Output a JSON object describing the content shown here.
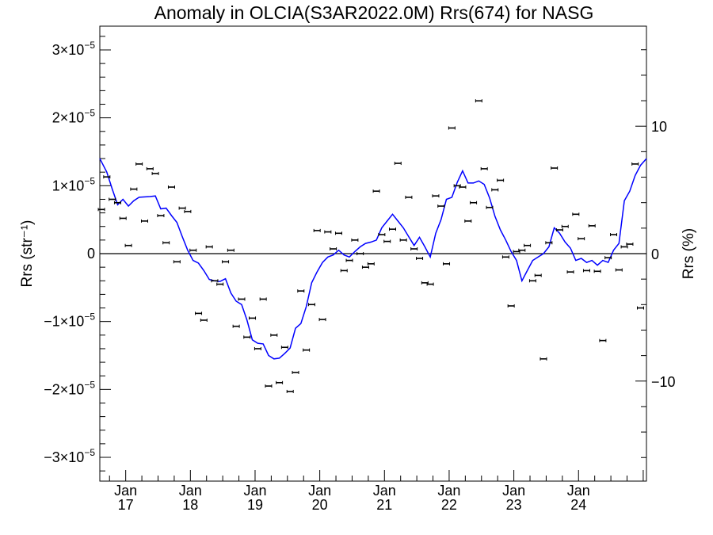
{
  "chart_data": {
    "type": "scatter",
    "title": "Anomaly in OLCIA(S3AR2022.0M) Rrs(674) for NASG",
    "ylabel": "Rrs (str⁻¹)",
    "ylabel_right": "Rrs (%)",
    "ylim": [
      -3.35e-05,
      3.35e-05
    ],
    "ylim_right": [
      -17.85,
      17.85
    ],
    "xlim": [
      2016.6,
      2025.05
    ],
    "x_ticks": [
      {
        "x": 2017.0,
        "month": "Jan",
        "year": "17"
      },
      {
        "x": 2018.0,
        "month": "Jan",
        "year": "18"
      },
      {
        "x": 2019.0,
        "month": "Jan",
        "year": "19"
      },
      {
        "x": 2020.0,
        "month": "Jan",
        "year": "20"
      },
      {
        "x": 2021.0,
        "month": "Jan",
        "year": "21"
      },
      {
        "x": 2022.0,
        "month": "Jan",
        "year": "22"
      },
      {
        "x": 2023.0,
        "month": "Jan",
        "year": "23"
      },
      {
        "x": 2024.0,
        "month": "Jan",
        "year": "24"
      }
    ],
    "y_ticks_left": [
      {
        "v": 3e-05,
        "mant": "3",
        "exp": "−5"
      },
      {
        "v": 2e-05,
        "mant": "2",
        "exp": "−5"
      },
      {
        "v": 1e-05,
        "mant": "1",
        "exp": "−5"
      },
      {
        "v": 0,
        "plain": "0"
      },
      {
        "v": -1e-05,
        "mant": "−1",
        "exp": "−5"
      },
      {
        "v": -2e-05,
        "mant": "−2",
        "exp": "−5"
      },
      {
        "v": -3e-05,
        "mant": "−3",
        "exp": "−5"
      }
    ],
    "y_ticks_right": [
      {
        "v": 10,
        "label": "10"
      },
      {
        "v": 0,
        "label": "0"
      },
      {
        "v": -10,
        "label": "−10"
      }
    ],
    "zero_line": true,
    "grid": false,
    "series": [
      {
        "kind": "points_with_error_bars",
        "color": "#000000",
        "points": [
          [
            2016.625,
            6.5e-06
          ],
          [
            2016.708,
            1.13e-05
          ],
          [
            2016.792,
            8e-06
          ],
          [
            2016.875,
            7.5e-06
          ],
          [
            2016.958,
            5.2e-06
          ],
          [
            2017.042,
            1.2e-06
          ],
          [
            2017.125,
            9.5e-06
          ],
          [
            2017.208,
            1.32e-05
          ],
          [
            2017.292,
            4.8e-06
          ],
          [
            2017.375,
            1.25e-05
          ],
          [
            2017.458,
            1.18e-05
          ],
          [
            2017.542,
            5.6e-06
          ],
          [
            2017.625,
            1.6e-06
          ],
          [
            2017.708,
            9.8e-06
          ],
          [
            2017.792,
            -1.2e-06
          ],
          [
            2017.875,
            6.7e-06
          ],
          [
            2017.958,
            6.2e-06
          ],
          [
            2018.042,
            5e-07
          ],
          [
            2018.125,
            -8.8e-06
          ],
          [
            2018.208,
            -9.8e-06
          ],
          [
            2018.292,
            1e-06
          ],
          [
            2018.375,
            -4e-06
          ],
          [
            2018.458,
            -4.5e-06
          ],
          [
            2018.542,
            -1.2e-06
          ],
          [
            2018.625,
            5e-07
          ],
          [
            2018.708,
            -1.07e-05
          ],
          [
            2018.792,
            -6.7e-06
          ],
          [
            2018.875,
            -1.23e-05
          ],
          [
            2018.958,
            -9.5e-06
          ],
          [
            2019.042,
            -1.4e-05
          ],
          [
            2019.125,
            -6.7e-06
          ],
          [
            2019.208,
            -1.95e-05
          ],
          [
            2019.292,
            -1.2e-05
          ],
          [
            2019.375,
            -1.9e-05
          ],
          [
            2019.458,
            -1.38e-05
          ],
          [
            2019.542,
            -2.03e-05
          ],
          [
            2019.625,
            -1.75e-05
          ],
          [
            2019.708,
            -5.5e-06
          ],
          [
            2019.792,
            -1.42e-05
          ],
          [
            2019.875,
            -7.5e-06
          ],
          [
            2019.958,
            3.4e-06
          ],
          [
            2020.042,
            -9.7e-06
          ],
          [
            2020.125,
            3.2e-06
          ],
          [
            2020.208,
            7e-07
          ],
          [
            2020.292,
            3e-06
          ],
          [
            2020.375,
            -2.5e-06
          ],
          [
            2020.458,
            -1e-06
          ],
          [
            2020.542,
            2e-06
          ],
          [
            2020.625,
            0.0
          ],
          [
            2020.708,
            -2e-06
          ],
          [
            2020.792,
            -1.5e-06
          ],
          [
            2020.875,
            9.2e-06
          ],
          [
            2020.958,
            2.8e-06
          ],
          [
            2021.042,
            1.8e-06
          ],
          [
            2021.125,
            3.6e-06
          ],
          [
            2021.208,
            1.33e-05
          ],
          [
            2021.292,
            2e-06
          ],
          [
            2021.375,
            8.3e-06
          ],
          [
            2021.458,
            7e-07
          ],
          [
            2021.542,
            -7e-07
          ],
          [
            2021.625,
            -4.3e-06
          ],
          [
            2021.708,
            -4.5e-06
          ],
          [
            2021.792,
            8.5e-06
          ],
          [
            2021.875,
            7e-06
          ],
          [
            2021.958,
            -1.5e-06
          ],
          [
            2022.042,
            1.85e-05
          ],
          [
            2022.125,
            1e-05
          ],
          [
            2022.208,
            9.8e-06
          ],
          [
            2022.292,
            4.8e-06
          ],
          [
            2022.375,
            7.5e-06
          ],
          [
            2022.458,
            2.25e-05
          ],
          [
            2022.542,
            1.25e-05
          ],
          [
            2022.625,
            6.8e-06
          ],
          [
            2022.708,
            9.4e-06
          ],
          [
            2022.792,
            1.08e-05
          ],
          [
            2022.875,
            -5e-07
          ],
          [
            2022.958,
            -7.7e-06
          ],
          [
            2023.042,
            3e-07
          ],
          [
            2023.125,
            5e-07
          ],
          [
            2023.208,
            1.2e-06
          ],
          [
            2023.292,
            -4e-06
          ],
          [
            2023.375,
            -3.2e-06
          ],
          [
            2023.458,
            -1.55e-05
          ],
          [
            2023.542,
            1.6e-06
          ],
          [
            2023.625,
            1.26e-05
          ],
          [
            2023.708,
            3.5e-06
          ],
          [
            2023.792,
            4e-06
          ],
          [
            2023.875,
            -2.7e-06
          ],
          [
            2023.958,
            5.8e-06
          ],
          [
            2024.042,
            2.2e-06
          ],
          [
            2024.125,
            -2.5e-06
          ],
          [
            2024.208,
            4.1e-06
          ],
          [
            2024.292,
            -2.6e-06
          ],
          [
            2024.375,
            -1.28e-05
          ],
          [
            2024.458,
            -6e-07
          ],
          [
            2024.542,
            2.8e-06
          ],
          [
            2024.625,
            -2.4e-06
          ],
          [
            2024.708,
            1e-06
          ],
          [
            2024.792,
            1.4e-06
          ],
          [
            2024.875,
            1.32e-05
          ],
          [
            2024.958,
            -8e-06
          ]
        ]
      },
      {
        "kind": "line",
        "color": "#0000ff",
        "points": [
          [
            2016.6,
            1.4e-05
          ],
          [
            2016.708,
            1.2e-05
          ],
          [
            2016.792,
            9.5e-06
          ],
          [
            2016.875,
            7.2e-06
          ],
          [
            2016.958,
            8e-06
          ],
          [
            2017.042,
            7e-06
          ],
          [
            2017.125,
            7.8e-06
          ],
          [
            2017.208,
            8.3e-06
          ],
          [
            2017.375,
            8.4e-06
          ],
          [
            2017.458,
            8.5e-06
          ],
          [
            2017.542,
            6.6e-06
          ],
          [
            2017.625,
            6.7e-06
          ],
          [
            2017.708,
            5.6e-06
          ],
          [
            2017.792,
            4.6e-06
          ],
          [
            2017.875,
            2.5e-06
          ],
          [
            2017.958,
            5e-07
          ],
          [
            2018.042,
            -1e-06
          ],
          [
            2018.125,
            -1.4e-06
          ],
          [
            2018.208,
            -2.5e-06
          ],
          [
            2018.292,
            -3.8e-06
          ],
          [
            2018.375,
            -4e-06
          ],
          [
            2018.458,
            -4.1e-06
          ],
          [
            2018.542,
            -3.7e-06
          ],
          [
            2018.625,
            -5.8e-06
          ],
          [
            2018.708,
            -7e-06
          ],
          [
            2018.792,
            -7.5e-06
          ],
          [
            2018.875,
            -9.8e-06
          ],
          [
            2018.958,
            -1.27e-05
          ],
          [
            2019.042,
            -1.32e-05
          ],
          [
            2019.125,
            -1.33e-05
          ],
          [
            2019.208,
            -1.5e-05
          ],
          [
            2019.292,
            -1.55e-05
          ],
          [
            2019.375,
            -1.54e-05
          ],
          [
            2019.458,
            -1.47e-05
          ],
          [
            2019.542,
            -1.39e-05
          ],
          [
            2019.625,
            -1.1e-05
          ],
          [
            2019.708,
            -1.03e-05
          ],
          [
            2019.792,
            -7.8e-06
          ],
          [
            2019.875,
            -4.3e-06
          ],
          [
            2019.958,
            -2.7e-06
          ],
          [
            2020.042,
            -1.3e-06
          ],
          [
            2020.125,
            -5e-07
          ],
          [
            2020.208,
            -2e-07
          ],
          [
            2020.292,
            5e-07
          ],
          [
            2020.375,
            -2e-07
          ],
          [
            2020.458,
            -5e-07
          ],
          [
            2020.542,
            3e-07
          ],
          [
            2020.625,
            1e-06
          ],
          [
            2020.708,
            1.5e-06
          ],
          [
            2020.792,
            1.7e-06
          ],
          [
            2020.875,
            2e-06
          ],
          [
            2020.958,
            3.8e-06
          ],
          [
            2021.042,
            4.8e-06
          ],
          [
            2021.125,
            5.8e-06
          ],
          [
            2021.208,
            4.8e-06
          ],
          [
            2021.292,
            3.8e-06
          ],
          [
            2021.375,
            2.5e-06
          ],
          [
            2021.458,
            1.2e-06
          ],
          [
            2021.542,
            2.4e-06
          ],
          [
            2021.625,
            1e-06
          ],
          [
            2021.708,
            -5e-07
          ],
          [
            2021.792,
            3e-06
          ],
          [
            2021.875,
            5e-06
          ],
          [
            2021.958,
            8e-06
          ],
          [
            2022.042,
            8.3e-06
          ],
          [
            2022.125,
            1.05e-05
          ],
          [
            2022.208,
            1.22e-05
          ],
          [
            2022.292,
            1.04e-05
          ],
          [
            2022.375,
            1.04e-05
          ],
          [
            2022.458,
            1.07e-05
          ],
          [
            2022.542,
            1.02e-05
          ],
          [
            2022.625,
            8.2e-06
          ],
          [
            2022.708,
            5.5e-06
          ],
          [
            2022.792,
            3.5e-06
          ],
          [
            2022.875,
            2e-06
          ],
          [
            2022.958,
            3e-07
          ],
          [
            2023.042,
            -1e-06
          ],
          [
            2023.125,
            -4e-06
          ],
          [
            2023.208,
            -2.5e-06
          ],
          [
            2023.292,
            -1e-06
          ],
          [
            2023.375,
            -5e-07
          ],
          [
            2023.458,
            0.0
          ],
          [
            2023.542,
            1e-06
          ],
          [
            2023.625,
            3.8e-06
          ],
          [
            2023.708,
            3e-06
          ],
          [
            2023.792,
            1.7e-06
          ],
          [
            2023.875,
            8e-07
          ],
          [
            2023.958,
            -1e-06
          ],
          [
            2024.042,
            -7e-07
          ],
          [
            2024.125,
            -1.3e-06
          ],
          [
            2024.208,
            -1e-06
          ],
          [
            2024.292,
            -1.7e-06
          ],
          [
            2024.375,
            -1e-06
          ],
          [
            2024.458,
            -1.3e-06
          ],
          [
            2024.542,
            5e-07
          ],
          [
            2024.625,
            1.5e-06
          ],
          [
            2024.708,
            7.8e-06
          ],
          [
            2024.792,
            9.2e-06
          ],
          [
            2024.875,
            1.15e-05
          ],
          [
            2024.958,
            1.3e-05
          ],
          [
            2025.05,
            1.4e-05
          ]
        ]
      }
    ]
  }
}
